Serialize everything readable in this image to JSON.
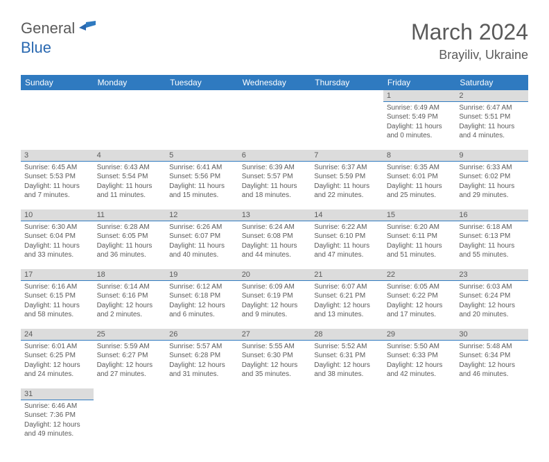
{
  "logo": {
    "general": "General",
    "blue": "Blue"
  },
  "month_title": "March 2024",
  "location": "Brayiliv, Ukraine",
  "dow": [
    "Sunday",
    "Monday",
    "Tuesday",
    "Wednesday",
    "Thursday",
    "Friday",
    "Saturday"
  ],
  "colors": {
    "header_bg": "#2f7ac0",
    "daynum_bg": "#dcdcdc",
    "row_border": "#2f7ac0",
    "text": "#5a5a5a",
    "logo_blue": "#2968b0"
  },
  "weeks": [
    [
      {
        "n": "",
        "l1": "",
        "l2": "",
        "l3": "",
        "l4": ""
      },
      {
        "n": "",
        "l1": "",
        "l2": "",
        "l3": "",
        "l4": ""
      },
      {
        "n": "",
        "l1": "",
        "l2": "",
        "l3": "",
        "l4": ""
      },
      {
        "n": "",
        "l1": "",
        "l2": "",
        "l3": "",
        "l4": ""
      },
      {
        "n": "",
        "l1": "",
        "l2": "",
        "l3": "",
        "l4": ""
      },
      {
        "n": "1",
        "l1": "Sunrise: 6:49 AM",
        "l2": "Sunset: 5:49 PM",
        "l3": "Daylight: 11 hours",
        "l4": "and 0 minutes."
      },
      {
        "n": "2",
        "l1": "Sunrise: 6:47 AM",
        "l2": "Sunset: 5:51 PM",
        "l3": "Daylight: 11 hours",
        "l4": "and 4 minutes."
      }
    ],
    [
      {
        "n": "3",
        "l1": "Sunrise: 6:45 AM",
        "l2": "Sunset: 5:53 PM",
        "l3": "Daylight: 11 hours",
        "l4": "and 7 minutes."
      },
      {
        "n": "4",
        "l1": "Sunrise: 6:43 AM",
        "l2": "Sunset: 5:54 PM",
        "l3": "Daylight: 11 hours",
        "l4": "and 11 minutes."
      },
      {
        "n": "5",
        "l1": "Sunrise: 6:41 AM",
        "l2": "Sunset: 5:56 PM",
        "l3": "Daylight: 11 hours",
        "l4": "and 15 minutes."
      },
      {
        "n": "6",
        "l1": "Sunrise: 6:39 AM",
        "l2": "Sunset: 5:57 PM",
        "l3": "Daylight: 11 hours",
        "l4": "and 18 minutes."
      },
      {
        "n": "7",
        "l1": "Sunrise: 6:37 AM",
        "l2": "Sunset: 5:59 PM",
        "l3": "Daylight: 11 hours",
        "l4": "and 22 minutes."
      },
      {
        "n": "8",
        "l1": "Sunrise: 6:35 AM",
        "l2": "Sunset: 6:01 PM",
        "l3": "Daylight: 11 hours",
        "l4": "and 25 minutes."
      },
      {
        "n": "9",
        "l1": "Sunrise: 6:33 AM",
        "l2": "Sunset: 6:02 PM",
        "l3": "Daylight: 11 hours",
        "l4": "and 29 minutes."
      }
    ],
    [
      {
        "n": "10",
        "l1": "Sunrise: 6:30 AM",
        "l2": "Sunset: 6:04 PM",
        "l3": "Daylight: 11 hours",
        "l4": "and 33 minutes."
      },
      {
        "n": "11",
        "l1": "Sunrise: 6:28 AM",
        "l2": "Sunset: 6:05 PM",
        "l3": "Daylight: 11 hours",
        "l4": "and 36 minutes."
      },
      {
        "n": "12",
        "l1": "Sunrise: 6:26 AM",
        "l2": "Sunset: 6:07 PM",
        "l3": "Daylight: 11 hours",
        "l4": "and 40 minutes."
      },
      {
        "n": "13",
        "l1": "Sunrise: 6:24 AM",
        "l2": "Sunset: 6:08 PM",
        "l3": "Daylight: 11 hours",
        "l4": "and 44 minutes."
      },
      {
        "n": "14",
        "l1": "Sunrise: 6:22 AM",
        "l2": "Sunset: 6:10 PM",
        "l3": "Daylight: 11 hours",
        "l4": "and 47 minutes."
      },
      {
        "n": "15",
        "l1": "Sunrise: 6:20 AM",
        "l2": "Sunset: 6:11 PM",
        "l3": "Daylight: 11 hours",
        "l4": "and 51 minutes."
      },
      {
        "n": "16",
        "l1": "Sunrise: 6:18 AM",
        "l2": "Sunset: 6:13 PM",
        "l3": "Daylight: 11 hours",
        "l4": "and 55 minutes."
      }
    ],
    [
      {
        "n": "17",
        "l1": "Sunrise: 6:16 AM",
        "l2": "Sunset: 6:15 PM",
        "l3": "Daylight: 11 hours",
        "l4": "and 58 minutes."
      },
      {
        "n": "18",
        "l1": "Sunrise: 6:14 AM",
        "l2": "Sunset: 6:16 PM",
        "l3": "Daylight: 12 hours",
        "l4": "and 2 minutes."
      },
      {
        "n": "19",
        "l1": "Sunrise: 6:12 AM",
        "l2": "Sunset: 6:18 PM",
        "l3": "Daylight: 12 hours",
        "l4": "and 6 minutes."
      },
      {
        "n": "20",
        "l1": "Sunrise: 6:09 AM",
        "l2": "Sunset: 6:19 PM",
        "l3": "Daylight: 12 hours",
        "l4": "and 9 minutes."
      },
      {
        "n": "21",
        "l1": "Sunrise: 6:07 AM",
        "l2": "Sunset: 6:21 PM",
        "l3": "Daylight: 12 hours",
        "l4": "and 13 minutes."
      },
      {
        "n": "22",
        "l1": "Sunrise: 6:05 AM",
        "l2": "Sunset: 6:22 PM",
        "l3": "Daylight: 12 hours",
        "l4": "and 17 minutes."
      },
      {
        "n": "23",
        "l1": "Sunrise: 6:03 AM",
        "l2": "Sunset: 6:24 PM",
        "l3": "Daylight: 12 hours",
        "l4": "and 20 minutes."
      }
    ],
    [
      {
        "n": "24",
        "l1": "Sunrise: 6:01 AM",
        "l2": "Sunset: 6:25 PM",
        "l3": "Daylight: 12 hours",
        "l4": "and 24 minutes."
      },
      {
        "n": "25",
        "l1": "Sunrise: 5:59 AM",
        "l2": "Sunset: 6:27 PM",
        "l3": "Daylight: 12 hours",
        "l4": "and 27 minutes."
      },
      {
        "n": "26",
        "l1": "Sunrise: 5:57 AM",
        "l2": "Sunset: 6:28 PM",
        "l3": "Daylight: 12 hours",
        "l4": "and 31 minutes."
      },
      {
        "n": "27",
        "l1": "Sunrise: 5:55 AM",
        "l2": "Sunset: 6:30 PM",
        "l3": "Daylight: 12 hours",
        "l4": "and 35 minutes."
      },
      {
        "n": "28",
        "l1": "Sunrise: 5:52 AM",
        "l2": "Sunset: 6:31 PM",
        "l3": "Daylight: 12 hours",
        "l4": "and 38 minutes."
      },
      {
        "n": "29",
        "l1": "Sunrise: 5:50 AM",
        "l2": "Sunset: 6:33 PM",
        "l3": "Daylight: 12 hours",
        "l4": "and 42 minutes."
      },
      {
        "n": "30",
        "l1": "Sunrise: 5:48 AM",
        "l2": "Sunset: 6:34 PM",
        "l3": "Daylight: 12 hours",
        "l4": "and 46 minutes."
      }
    ],
    [
      {
        "n": "31",
        "l1": "Sunrise: 6:46 AM",
        "l2": "Sunset: 7:36 PM",
        "l3": "Daylight: 12 hours",
        "l4": "and 49 minutes."
      },
      {
        "n": "",
        "l1": "",
        "l2": "",
        "l3": "",
        "l4": ""
      },
      {
        "n": "",
        "l1": "",
        "l2": "",
        "l3": "",
        "l4": ""
      },
      {
        "n": "",
        "l1": "",
        "l2": "",
        "l3": "",
        "l4": ""
      },
      {
        "n": "",
        "l1": "",
        "l2": "",
        "l3": "",
        "l4": ""
      },
      {
        "n": "",
        "l1": "",
        "l2": "",
        "l3": "",
        "l4": ""
      },
      {
        "n": "",
        "l1": "",
        "l2": "",
        "l3": "",
        "l4": ""
      }
    ]
  ]
}
